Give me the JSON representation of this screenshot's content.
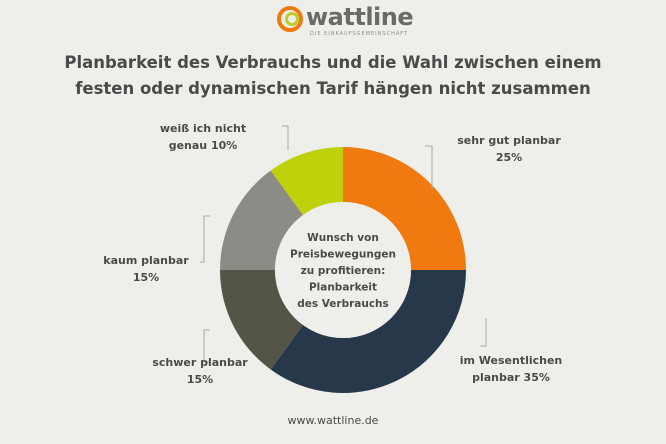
{
  "brand": {
    "name": "wattline",
    "tagline": "DIE EINKAUFSGEMEINSCHAFT",
    "colors": {
      "orange": "#f07a10",
      "green": "#bfcc2a",
      "gray": "#8a8a86"
    }
  },
  "title_line1": "Planbarkeit des Verbrauchs und die Wahl zwischen einem",
  "title_line2": "festen oder dynamischen Tarif hängen nicht zusammen",
  "footer": "www.wattline.de",
  "chart_data": {
    "type": "pie",
    "center_label": [
      "Wunsch von",
      "Preisbewegungen",
      "zu profitieren:",
      "Planbarkeit",
      "des Verbrauchs"
    ],
    "slices": [
      {
        "label_line1": "sehr gut planbar",
        "label_line2": "25%",
        "value": 25,
        "color": "#f07a10"
      },
      {
        "label_line1": "im Wesentlichen",
        "label_line2": "planbar 35%",
        "value": 35,
        "color": "#27384a"
      },
      {
        "label_line1": "schwer planbar",
        "label_line2": "15%",
        "value": 15,
        "color": "#545449"
      },
      {
        "label_line1": "kaum planbar",
        "label_line2": "15%",
        "value": 15,
        "color": "#8c8c86"
      },
      {
        "label_line1": "weiß ich nicht",
        "label_line2": "genau 10%",
        "value": 10,
        "color": "#bfd10a"
      }
    ]
  }
}
